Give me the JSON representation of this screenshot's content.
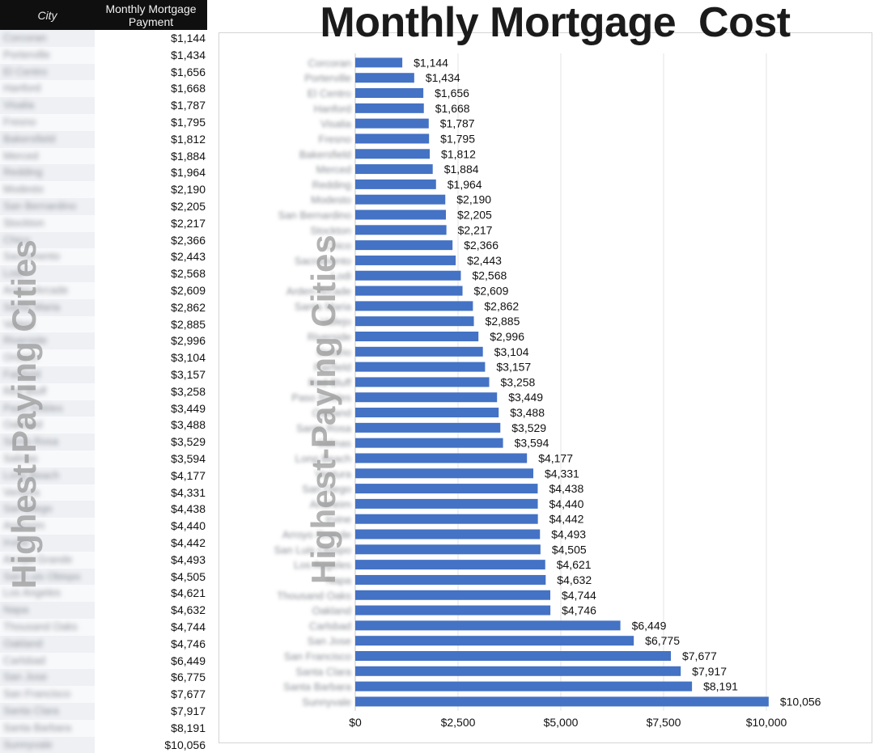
{
  "table": {
    "header_city": "City",
    "header_payment": "Monthly Mortgage\nPayment",
    "rows": [
      {
        "city": "Corcoran",
        "payment": "$1,144"
      },
      {
        "city": "Porterville",
        "payment": "$1,434"
      },
      {
        "city": "El Centro",
        "payment": "$1,656"
      },
      {
        "city": "Hanford",
        "payment": "$1,668"
      },
      {
        "city": "Visalia",
        "payment": "$1,787"
      },
      {
        "city": "Fresno",
        "payment": "$1,795"
      },
      {
        "city": "Bakersfield",
        "payment": "$1,812"
      },
      {
        "city": "Merced",
        "payment": "$1,884"
      },
      {
        "city": "Redding",
        "payment": "$1,964"
      },
      {
        "city": "Modesto",
        "payment": "$2,190"
      },
      {
        "city": "San Bernardino",
        "payment": "$2,205"
      },
      {
        "city": "Stockton",
        "payment": "$2,217"
      },
      {
        "city": "Chico",
        "payment": "$2,366"
      },
      {
        "city": "Sacramento",
        "payment": "$2,443"
      },
      {
        "city": "Lodi",
        "payment": "$2,568"
      },
      {
        "city": "Arden-Arcade",
        "payment": "$2,609"
      },
      {
        "city": "Santa Maria",
        "payment": "$2,862"
      },
      {
        "city": "Vallejo",
        "payment": "$2,885"
      },
      {
        "city": "Riverside",
        "payment": "$2,996"
      },
      {
        "city": "Ontario",
        "payment": "$3,104"
      },
      {
        "city": "Fairfield",
        "payment": "$3,157"
      },
      {
        "city": "Red Bluff",
        "payment": "$3,258"
      },
      {
        "city": "Paso Robles",
        "payment": "$3,449"
      },
      {
        "city": "Oakland",
        "payment": "$3,488"
      },
      {
        "city": "Santa Rosa",
        "payment": "$3,529"
      },
      {
        "city": "Salinas",
        "payment": "$3,594"
      },
      {
        "city": "Long Beach",
        "payment": "$4,177"
      },
      {
        "city": "Ventura",
        "payment": "$4,331"
      },
      {
        "city": "San Diego",
        "payment": "$4,438"
      },
      {
        "city": "Anaheim",
        "payment": "$4,440"
      },
      {
        "city": "Irvine",
        "payment": "$4,442"
      },
      {
        "city": "Arroyo Grande",
        "payment": "$4,493"
      },
      {
        "city": "San Luis Obispo",
        "payment": "$4,505"
      },
      {
        "city": "Los Angeles",
        "payment": "$4,621"
      },
      {
        "city": "Napa",
        "payment": "$4,632"
      },
      {
        "city": "Thousand Oaks",
        "payment": "$4,744"
      },
      {
        "city": "Oakland",
        "payment": "$4,746"
      },
      {
        "city": "Carlsbad",
        "payment": "$6,449"
      },
      {
        "city": "San Jose",
        "payment": "$6,775"
      },
      {
        "city": "San Francisco",
        "payment": "$7,677"
      },
      {
        "city": "Santa Clara",
        "payment": "$7,917"
      },
      {
        "city": "Santa Barbara",
        "payment": "$8,191"
      },
      {
        "city": "Sunnyvale",
        "payment": "$10,056"
      }
    ]
  },
  "watermark": "Highest-Paying Cities",
  "colors": {
    "bar": "#4472c4",
    "header_bg": "#0f0f10",
    "grid": "#e3e3e3"
  },
  "chart_data": {
    "type": "bar",
    "orientation": "horizontal",
    "title": "Monthly Mortgage  Cost",
    "categories": [
      "Corcoran",
      "Porterville",
      "El Centro",
      "Hanford",
      "Visalia",
      "Fresno",
      "Bakersfield",
      "Merced",
      "Redding",
      "Modesto",
      "San Bernardino",
      "Stockton",
      "Chico",
      "Sacramento",
      "Lodi",
      "Arden-Arcade",
      "Santa Maria",
      "Vallejo",
      "Riverside",
      "Ontario",
      "Fairfield",
      "Red Bluff",
      "Paso Robles",
      "Oakland",
      "Santa Rosa",
      "Salinas",
      "Long Beach",
      "Ventura",
      "San Diego",
      "Anaheim",
      "Irvine",
      "Arroyo Grande",
      "San Luis Obispo",
      "Los Angeles",
      "Napa",
      "Thousand Oaks",
      "Oakland",
      "Carlsbad",
      "San Jose",
      "San Francisco",
      "Santa Clara",
      "Santa Barbara",
      "Sunnyvale"
    ],
    "values": [
      1144,
      1434,
      1656,
      1668,
      1787,
      1795,
      1812,
      1884,
      1964,
      2190,
      2205,
      2217,
      2366,
      2443,
      2568,
      2609,
      2862,
      2885,
      2996,
      3104,
      3157,
      3258,
      3449,
      3488,
      3529,
      3594,
      4177,
      4331,
      4438,
      4440,
      4442,
      4493,
      4505,
      4621,
      4632,
      4744,
      4746,
      6449,
      6775,
      7677,
      7917,
      8191,
      10056
    ],
    "value_labels": [
      "$1,144",
      "$1,434",
      "$1,656",
      "$1,668",
      "$1,787",
      "$1,795",
      "$1,812",
      "$1,884",
      "$1,964",
      "$2,190",
      "$2,205",
      "$2,217",
      "$2,366",
      "$2,443",
      "$2,568",
      "$2,609",
      "$2,862",
      "$2,885",
      "$2,996",
      "$3,104",
      "$3,157",
      "$3,258",
      "$3,449",
      "$3,488",
      "$3,529",
      "$3,594",
      "$4,177",
      "$4,331",
      "$4,438",
      "$4,440",
      "$4,442",
      "$4,493",
      "$4,505",
      "$4,621",
      "$4,632",
      "$4,744",
      "$4,746",
      "$6,449",
      "$6,775",
      "$7,677",
      "$7,917",
      "$8,191",
      "$10,056"
    ],
    "xlim": [
      0,
      10000
    ],
    "xticks": [
      0,
      2500,
      5000,
      7500,
      10000
    ],
    "xtick_labels": [
      "$0",
      "$2,500",
      "$5,000",
      "$7,500",
      "$10,000"
    ],
    "grid": true,
    "legend": "none"
  }
}
